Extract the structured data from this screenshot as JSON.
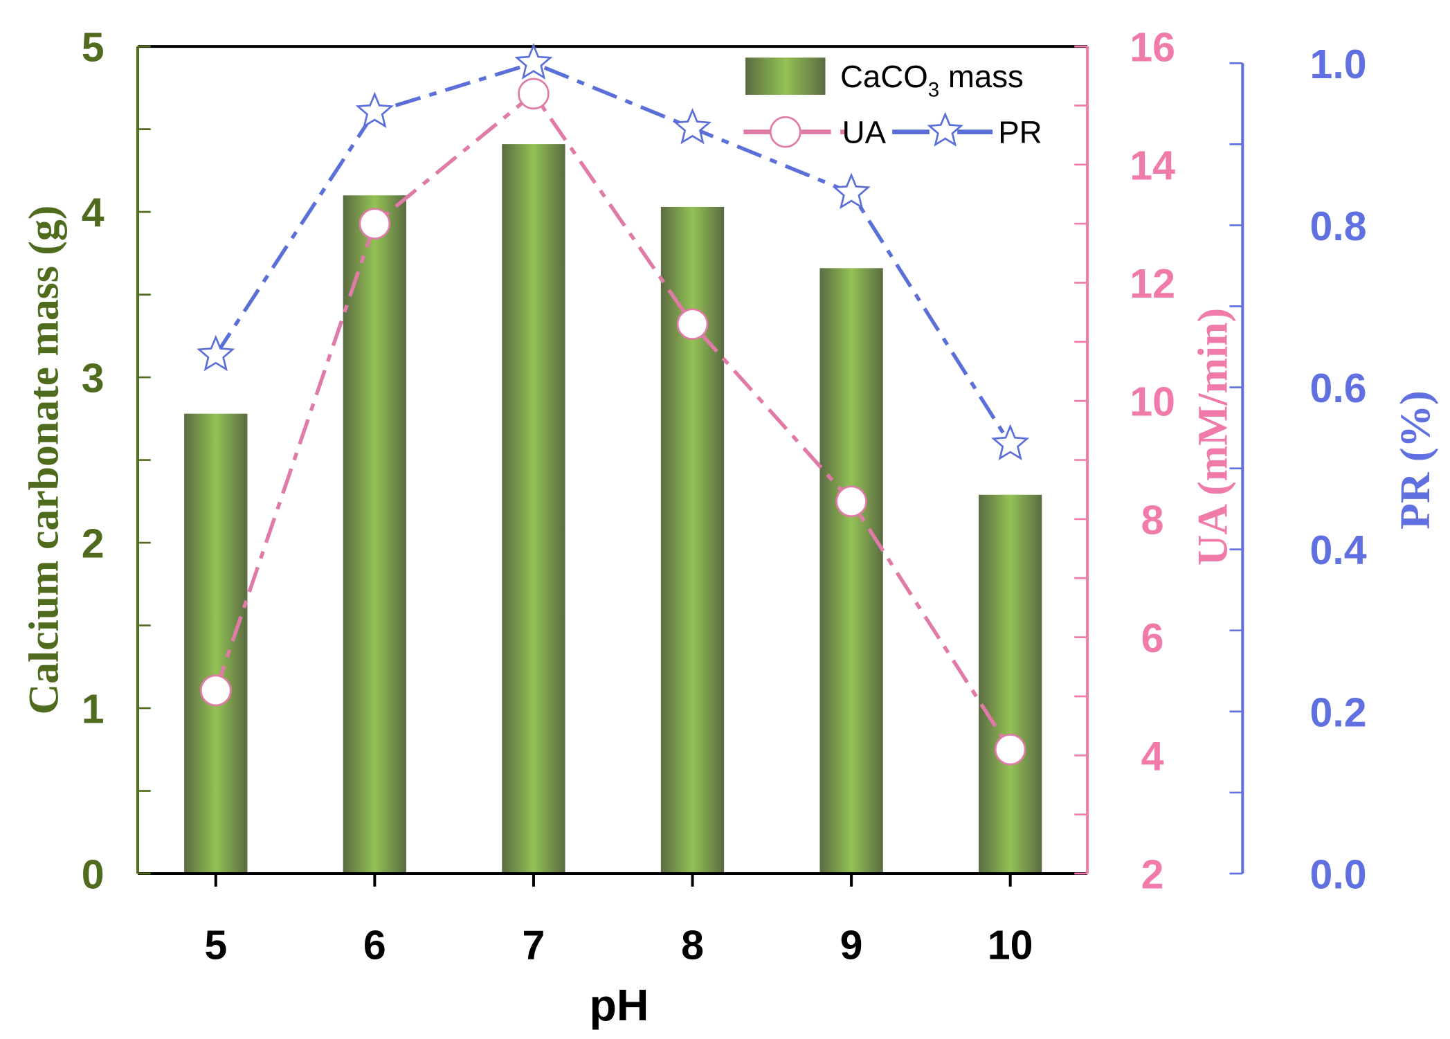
{
  "chart_data": {
    "type": "bar",
    "title": "",
    "xlabel": "pH",
    "categories": [
      "5",
      "6",
      "7",
      "8",
      "9",
      "10"
    ],
    "series": [
      {
        "name": "CaCO3 mass",
        "type": "bar",
        "axis": "left",
        "values": [
          2.78,
          4.1,
          4.41,
          4.03,
          3.66,
          2.29
        ]
      },
      {
        "name": "UA",
        "type": "line",
        "axis": "right1",
        "marker": "circle",
        "values": [
          5.1,
          13.0,
          15.2,
          11.3,
          8.3,
          4.1
        ]
      },
      {
        "name": "PR",
        "type": "line",
        "axis": "right2",
        "marker": "star",
        "values": [
          0.64,
          0.94,
          1.0,
          0.92,
          0.84,
          0.53
        ]
      }
    ],
    "axes": {
      "left": {
        "label": "Calcium carbonate mass (g)",
        "range": [
          0,
          5
        ],
        "ticks": [
          "0",
          "1",
          "2",
          "3",
          "4",
          "5"
        ],
        "color": "#4f6b1e"
      },
      "right1": {
        "label": "UA (mM/min)",
        "range": [
          2,
          16
        ],
        "ticks": [
          "2",
          "4",
          "6",
          "8",
          "10",
          "12",
          "14",
          "16"
        ],
        "color": "#f07aaa"
      },
      "right2": {
        "label": "PR (%)",
        "range": [
          0,
          1.0
        ],
        "ticks": [
          "0.0",
          "0.2",
          "0.4",
          "0.6",
          "0.8",
          "1.0"
        ],
        "color": "#6070e0"
      }
    },
    "legend": {
      "position": "top-right",
      "bar_label": "CaCO",
      "bar_sub": "3",
      "bar_suffix": " mass",
      "ua_label": "UA",
      "pr_label": "PR"
    },
    "grid": false
  }
}
